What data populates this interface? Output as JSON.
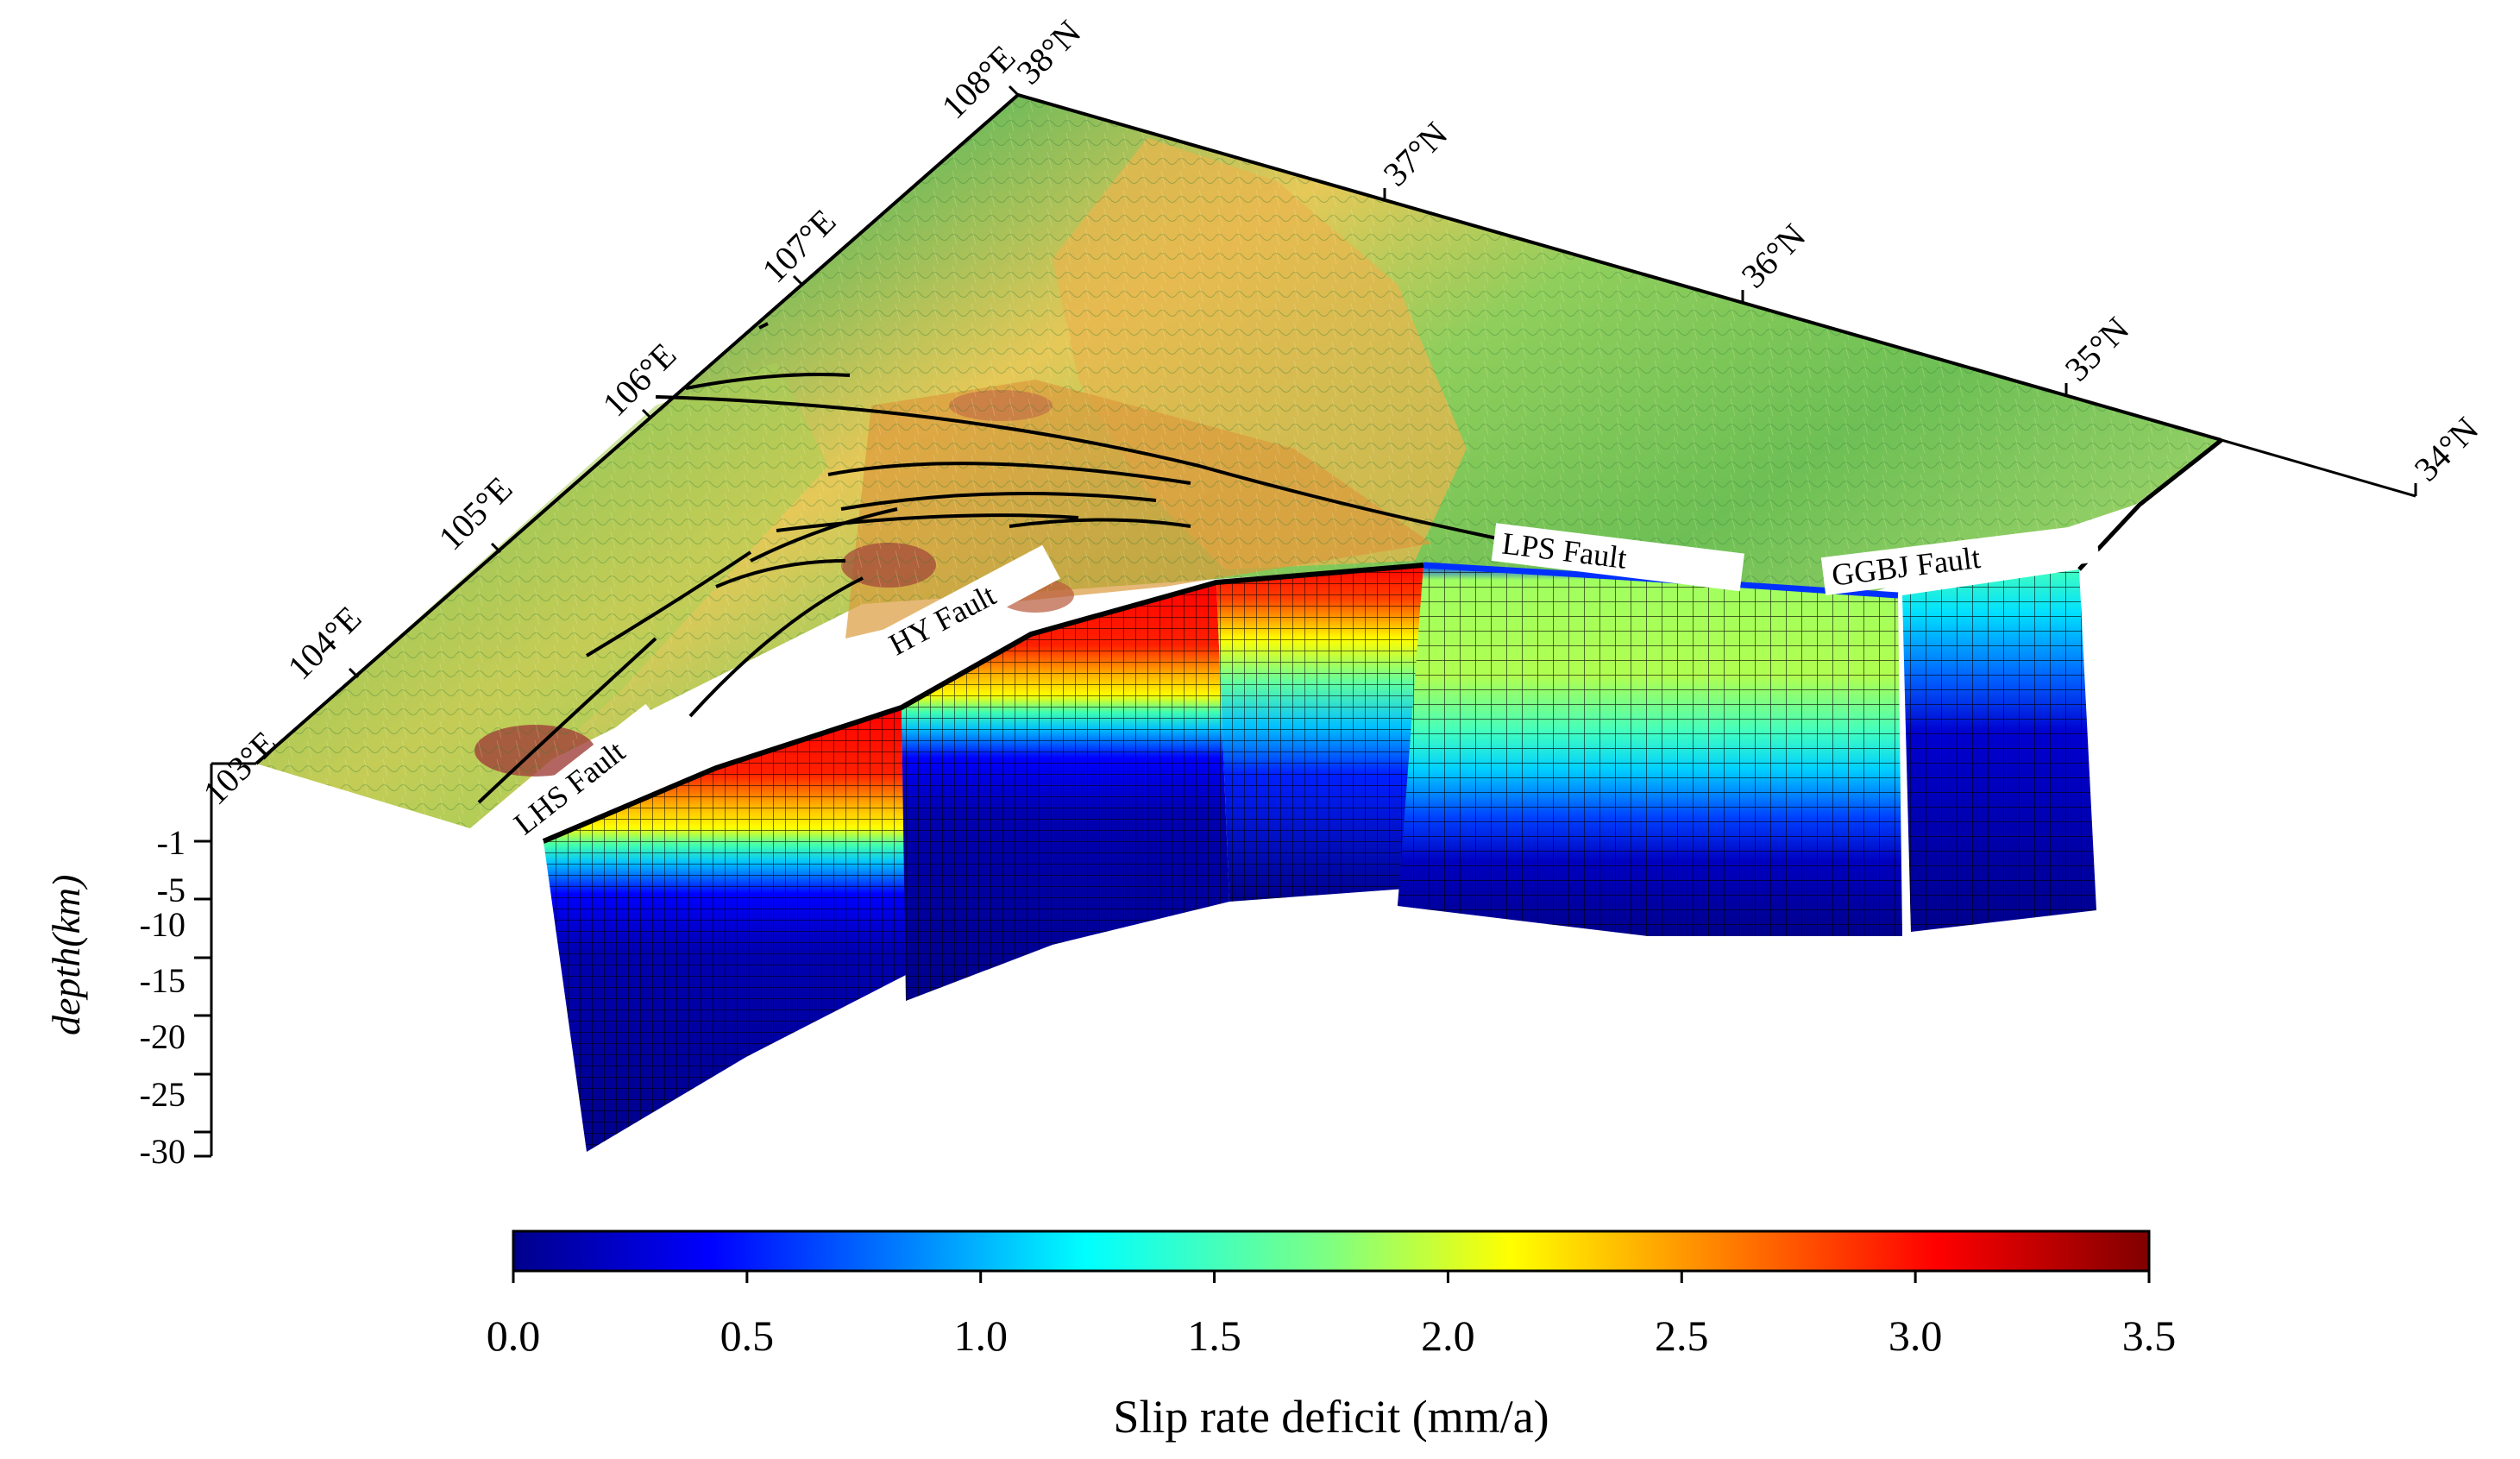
{
  "figure": {
    "longitude_labels": [
      "103°E",
      "104°E",
      "105°E",
      "106°E",
      "107°E",
      "108°E"
    ],
    "latitude_labels": [
      "38°N",
      "37°N",
      "36°N",
      "35°N",
      "34°N"
    ],
    "depth_axis": {
      "title": "depth(km)",
      "ticks": [
        "-1",
        "-5",
        "-10",
        "-15",
        "-20",
        "-25",
        "-30"
      ]
    },
    "faults": [
      {
        "name": "LHS Fault"
      },
      {
        "name": "HY Fault"
      },
      {
        "name": "LPS Fault"
      },
      {
        "name": "GGBJ Fault"
      }
    ],
    "colorbar": {
      "title": "Slip rate deficit (mm/a)",
      "min": 0.0,
      "max": 3.5,
      "ticks": [
        "0.0",
        "0.5",
        "1.0",
        "1.5",
        "2.0",
        "2.5",
        "3.0",
        "3.5"
      ],
      "colormap": [
        "#00008b",
        "#0000ff",
        "#00a0ff",
        "#00ffff",
        "#7fff7f",
        "#ffff00",
        "#ff8000",
        "#ff0000",
        "#800000"
      ]
    },
    "terrain_colors": [
      "#3aa84a",
      "#8fce5c",
      "#e8d45a",
      "#d98a3a",
      "#a0522d",
      "#f0e0e0"
    ]
  }
}
